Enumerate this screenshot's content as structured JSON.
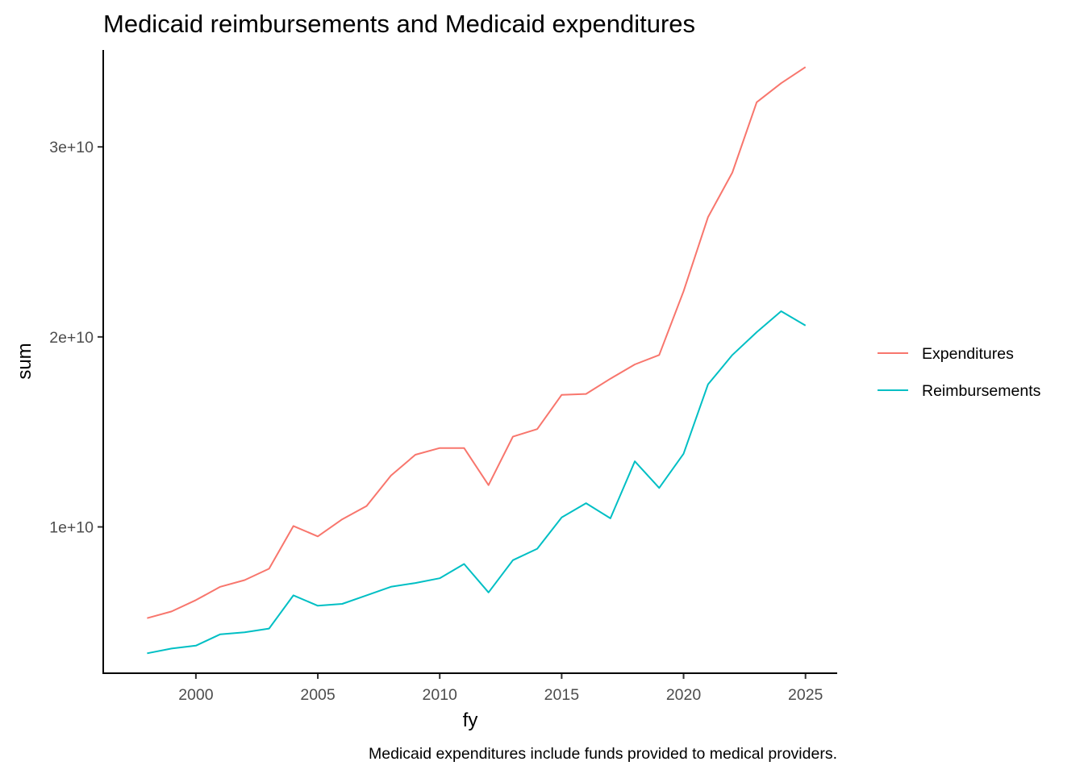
{
  "chart_data": {
    "type": "line",
    "title": "Medicaid reimbursements and Medicaid expenditures",
    "xlabel": "fy",
    "ylabel": "sum",
    "caption": "Medicaid expenditures include funds provided to medical providers.",
    "xlim": [
      1996.2,
      2026.3
    ],
    "ylim": [
      2300000000,
      35100000000
    ],
    "x_ticks": [
      2000,
      2005,
      2010,
      2015,
      2020,
      2025
    ],
    "x_tick_labels": [
      "2000",
      "2005",
      "2010",
      "2015",
      "2020",
      "2025"
    ],
    "y_ticks": [
      10000000000,
      20000000000,
      30000000000
    ],
    "y_tick_labels": [
      "1e+10",
      "2e+10",
      "3e+10"
    ],
    "grid": false,
    "legend_position": "right",
    "x": [
      1998,
      1999,
      2000,
      2001,
      2002,
      2003,
      2004,
      2005,
      2006,
      2007,
      2008,
      2009,
      2010,
      2011,
      2012,
      2013,
      2014,
      2015,
      2016,
      2017,
      2018,
      2019,
      2020,
      2021,
      2022,
      2023,
      2024,
      2025
    ],
    "series": [
      {
        "name": "Expenditures",
        "color": "#F8766D",
        "values": [
          5200000000,
          5550000000,
          6150000000,
          6850000000,
          7200000000,
          7800000000,
          10050000000,
          9500000000,
          10400000000,
          11100000000,
          12700000000,
          13800000000,
          14150000000,
          14150000000,
          12200000000,
          14750000000,
          15150000000,
          16950000000,
          17000000000,
          17800000000,
          18550000000,
          19050000000,
          22400000000,
          26300000000,
          28650000000,
          32350000000,
          33350000000,
          34200000000
        ]
      },
      {
        "name": "Reimbursements",
        "color": "#00BFC4",
        "values": [
          3350000000,
          3600000000,
          3750000000,
          4350000000,
          4450000000,
          4650000000,
          6400000000,
          5850000000,
          5950000000,
          6400000000,
          6850000000,
          7050000000,
          7300000000,
          8050000000,
          6550000000,
          8250000000,
          8850000000,
          10500000000,
          11250000000,
          10450000000,
          13450000000,
          12050000000,
          13850000000,
          17500000000,
          19050000000,
          20250000000,
          21350000000,
          20600000000
        ]
      }
    ]
  }
}
